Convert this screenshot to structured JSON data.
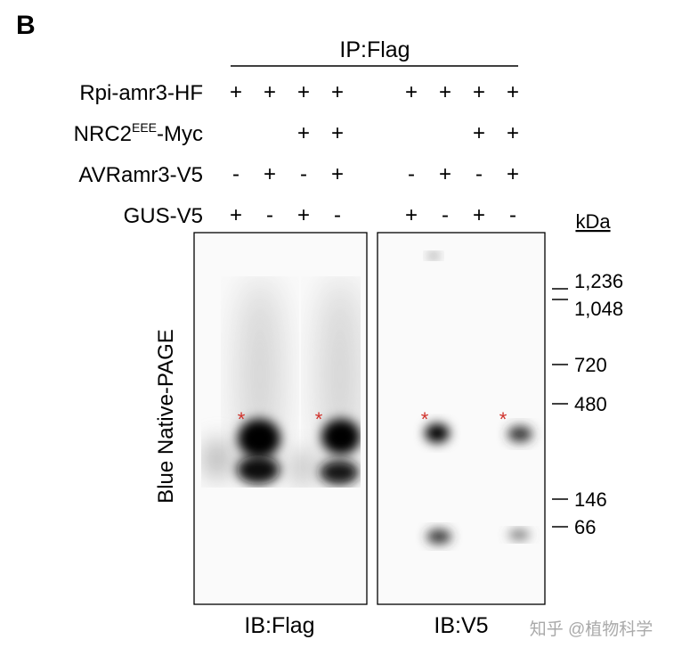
{
  "panel_label": "B",
  "ip_label": "IP:Flag",
  "rows": [
    {
      "label": "Rpi-amr3-HF",
      "lanes": [
        "+",
        "+",
        "+",
        "+",
        "+",
        "+",
        "+",
        "+"
      ]
    },
    {
      "label_parts": [
        "NRC2",
        "EEE",
        "-Myc"
      ],
      "lanes": [
        null,
        null,
        "+",
        "+",
        null,
        null,
        "+",
        "+"
      ]
    },
    {
      "label": "AVRamr3-V5",
      "lanes": [
        "-",
        "+",
        "-",
        "+",
        "-",
        "+",
        "-",
        "+"
      ]
    },
    {
      "label": "GUS-V5",
      "lanes": [
        "+",
        "-",
        "+",
        "-",
        "+",
        "-",
        "+",
        "-"
      ]
    }
  ],
  "y_label": "Blue Native-PAGE",
  "asterisks": [
    "*",
    "*",
    "*",
    "*"
  ],
  "markers": {
    "unit": "kDa",
    "labels": [
      "1,236",
      "1,048",
      "720",
      "480",
      "146",
      "66"
    ]
  },
  "blot_labels": [
    "IB:Flag",
    "IB:V5"
  ],
  "watermark": "知乎 @植物科学"
}
